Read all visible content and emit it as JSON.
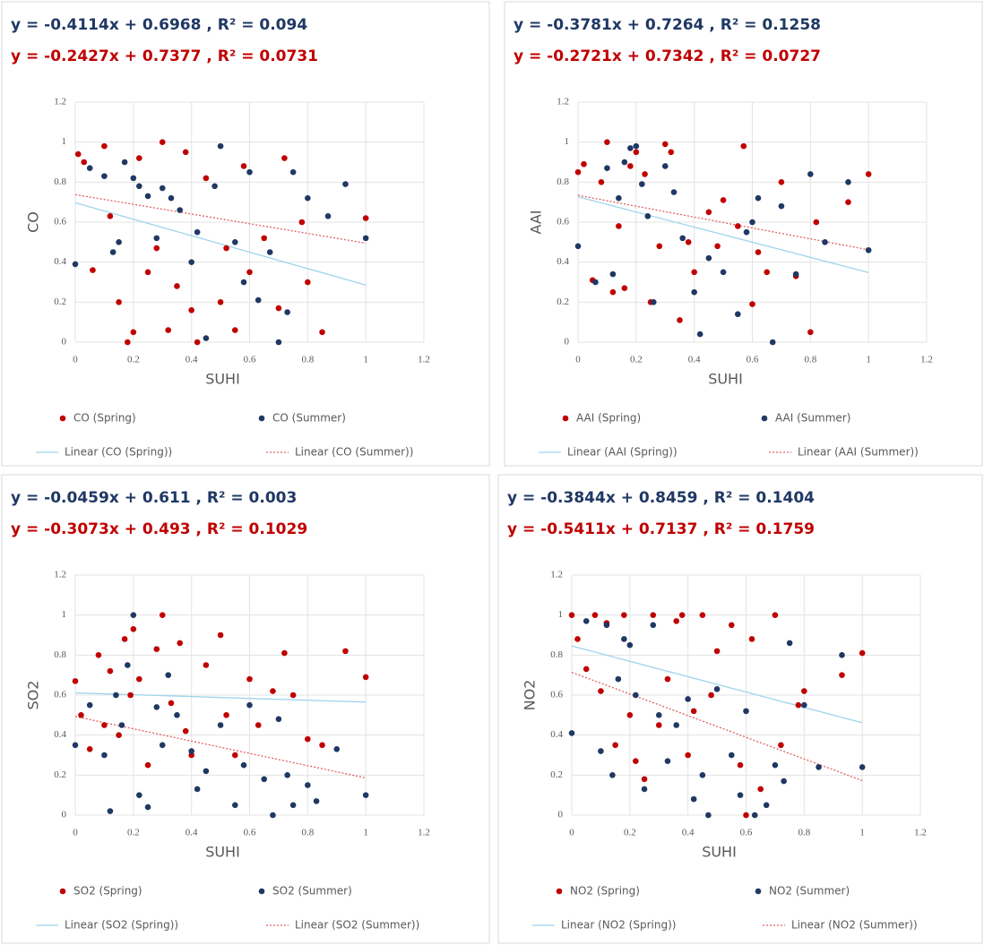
{
  "chart_data": [
    {
      "type": "scatter",
      "xlabel": "SUHI",
      "ylabel": "CO",
      "xlim": [
        0,
        1.2
      ],
      "xticks": [
        0,
        0.2,
        0.4,
        0.6,
        0.8,
        1,
        1.2
      ],
      "ylim": [
        0,
        1.2
      ],
      "yticks": [
        0,
        0.2,
        0.4,
        0.6,
        0.8,
        1,
        1.2
      ],
      "grid": true,
      "series": [
        {
          "name": "CO (Spring)",
          "color": "#c00000",
          "x": [
            0.01,
            0.03,
            0.06,
            0.1,
            0.12,
            0.15,
            0.18,
            0.2,
            0.22,
            0.25,
            0.28,
            0.3,
            0.32,
            0.35,
            0.38,
            0.4,
            0.42,
            0.45,
            0.5,
            0.52,
            0.55,
            0.58,
            0.6,
            0.65,
            0.7,
            0.72,
            0.78,
            0.8,
            0.85,
            1.0
          ],
          "values": [
            0.94,
            0.9,
            0.36,
            0.98,
            0.63,
            0.2,
            0.0,
            0.05,
            0.92,
            0.35,
            0.47,
            1.0,
            0.06,
            0.28,
            0.95,
            0.16,
            0.0,
            0.82,
            0.2,
            0.47,
            0.06,
            0.88,
            0.35,
            0.52,
            0.17,
            0.92,
            0.6,
            0.3,
            0.05,
            0.62
          ]
        },
        {
          "name": "CO (Summer)",
          "color": "#1f3864",
          "x": [
            0.0,
            0.05,
            0.1,
            0.13,
            0.15,
            0.17,
            0.2,
            0.22,
            0.25,
            0.28,
            0.3,
            0.33,
            0.36,
            0.4,
            0.42,
            0.45,
            0.48,
            0.5,
            0.55,
            0.58,
            0.6,
            0.63,
            0.67,
            0.7,
            0.73,
            0.75,
            0.8,
            0.87,
            0.93,
            1.0
          ],
          "values": [
            0.39,
            0.87,
            0.83,
            0.45,
            0.5,
            0.9,
            0.82,
            0.78,
            0.73,
            0.52,
            0.77,
            0.72,
            0.66,
            0.4,
            0.55,
            0.02,
            0.78,
            0.98,
            0.5,
            0.3,
            0.85,
            0.21,
            0.45,
            0.0,
            0.15,
            0.85,
            0.72,
            0.63,
            0.79,
            0.52
          ]
        }
      ],
      "trendlines": [
        {
          "name": "Linear (CO (Spring))",
          "color": "#9fd4ec",
          "dashed": false,
          "slope": -0.4114,
          "intercept": 0.6968,
          "label": "y = -0.4114x + 0.6968 ,  R² = 0.094",
          "label_color": "#1f3864"
        },
        {
          "name": "Linear (CO (Summer))",
          "color": "#e06060",
          "dashed": true,
          "slope": -0.2427,
          "intercept": 0.7377,
          "label": "y = -0.2427x + 0.7377 ,  R² = 0.0731",
          "label_color": "#c00000"
        }
      ]
    },
    {
      "type": "scatter",
      "xlabel": "SUHI",
      "ylabel": "AAI",
      "xlim": [
        0,
        1.2
      ],
      "xticks": [
        0,
        0.2,
        0.4,
        0.6,
        0.8,
        1,
        1.2
      ],
      "ylim": [
        0,
        1.2
      ],
      "yticks": [
        0,
        0.2,
        0.4,
        0.6,
        0.8,
        1,
        1.2
      ],
      "grid": true,
      "series": [
        {
          "name": "AAI (Spring)",
          "color": "#c00000",
          "x": [
            0.0,
            0.02,
            0.05,
            0.08,
            0.1,
            0.12,
            0.14,
            0.16,
            0.18,
            0.2,
            0.23,
            0.25,
            0.28,
            0.3,
            0.32,
            0.35,
            0.38,
            0.4,
            0.45,
            0.48,
            0.5,
            0.55,
            0.57,
            0.6,
            0.62,
            0.65,
            0.7,
            0.75,
            0.8,
            0.82,
            0.93,
            1.0
          ],
          "values": [
            0.85,
            0.89,
            0.31,
            0.8,
            1.0,
            0.25,
            0.58,
            0.27,
            0.88,
            0.95,
            0.84,
            0.2,
            0.48,
            0.99,
            0.95,
            0.11,
            0.5,
            0.35,
            0.65,
            0.48,
            0.71,
            0.58,
            0.98,
            0.19,
            0.45,
            0.35,
            0.8,
            0.33,
            0.05,
            0.6,
            0.7,
            0.84
          ]
        },
        {
          "name": "AAI (Summer)",
          "color": "#1f3864",
          "x": [
            0.0,
            0.06,
            0.1,
            0.12,
            0.14,
            0.16,
            0.18,
            0.2,
            0.22,
            0.24,
            0.26,
            0.3,
            0.33,
            0.36,
            0.4,
            0.42,
            0.45,
            0.5,
            0.55,
            0.58,
            0.6,
            0.62,
            0.67,
            0.7,
            0.75,
            0.8,
            0.85,
            0.93,
            1.0
          ],
          "values": [
            0.48,
            0.3,
            0.87,
            0.34,
            0.72,
            0.9,
            0.97,
            0.98,
            0.79,
            0.63,
            0.2,
            0.88,
            0.75,
            0.52,
            0.25,
            0.04,
            0.42,
            0.35,
            0.14,
            0.55,
            0.6,
            0.72,
            0.0,
            0.68,
            0.34,
            0.84,
            0.5,
            0.8,
            0.46
          ]
        }
      ],
      "trendlines": [
        {
          "name": "Linear (AAI (Spring))",
          "color": "#9fd4ec",
          "dashed": false,
          "slope": -0.3781,
          "intercept": 0.7264,
          "label": "y = -0.3781x + 0.7264 ,  R² = 0.1258",
          "label_color": "#1f3864"
        },
        {
          "name": "Linear (AAI (Summer))",
          "color": "#e06060",
          "dashed": true,
          "slope": -0.2721,
          "intercept": 0.7342,
          "label": "y = -0.2721x + 0.7342 ,  R² = 0.0727",
          "label_color": "#c00000"
        }
      ]
    },
    {
      "type": "scatter",
      "xlabel": "SUHI",
      "ylabel": "SO2",
      "xlim": [
        0,
        1.2
      ],
      "xticks": [
        0,
        0.2,
        0.4,
        0.6,
        0.8,
        1,
        1.2
      ],
      "ylim": [
        0,
        1.2
      ],
      "yticks": [
        0,
        0.2,
        0.4,
        0.6,
        0.8,
        1,
        1.2
      ],
      "grid": true,
      "series": [
        {
          "name": "SO2 (Spring)",
          "color": "#c00000",
          "x": [
            0.0,
            0.02,
            0.05,
            0.08,
            0.1,
            0.12,
            0.15,
            0.17,
            0.19,
            0.2,
            0.22,
            0.25,
            0.28,
            0.3,
            0.33,
            0.36,
            0.38,
            0.4,
            0.45,
            0.5,
            0.52,
            0.55,
            0.6,
            0.63,
            0.68,
            0.72,
            0.75,
            0.8,
            0.85,
            0.93,
            1.0
          ],
          "values": [
            0.67,
            0.5,
            0.33,
            0.8,
            0.45,
            0.72,
            0.4,
            0.88,
            0.6,
            0.93,
            0.68,
            0.25,
            0.83,
            1.0,
            0.56,
            0.86,
            0.42,
            0.3,
            0.75,
            0.9,
            0.5,
            0.3,
            0.68,
            0.45,
            0.62,
            0.81,
            0.6,
            0.38,
            0.35,
            0.82,
            0.69
          ]
        },
        {
          "name": "SO2 (Summer)",
          "color": "#1f3864",
          "x": [
            0.0,
            0.05,
            0.1,
            0.12,
            0.14,
            0.16,
            0.18,
            0.2,
            0.22,
            0.25,
            0.28,
            0.3,
            0.32,
            0.35,
            0.4,
            0.42,
            0.45,
            0.5,
            0.55,
            0.58,
            0.6,
            0.65,
            0.68,
            0.7,
            0.73,
            0.75,
            0.8,
            0.83,
            0.9,
            1.0
          ],
          "values": [
            0.35,
            0.55,
            0.3,
            0.02,
            0.6,
            0.45,
            0.75,
            1.0,
            0.1,
            0.04,
            0.54,
            0.35,
            0.7,
            0.5,
            0.32,
            0.13,
            0.22,
            0.45,
            0.05,
            0.25,
            0.55,
            0.18,
            0.0,
            0.48,
            0.2,
            0.05,
            0.15,
            0.07,
            0.33,
            0.1
          ]
        }
      ],
      "trendlines": [
        {
          "name": "Linear (SO2 (Spring))",
          "color": "#9fd4ec",
          "dashed": false,
          "slope": -0.0459,
          "intercept": 0.611,
          "label": "y = -0.0459x + 0.611 ,  R² = 0.003",
          "label_color": "#1f3864"
        },
        {
          "name": "Linear (SO2 (Summer))",
          "color": "#e06060",
          "dashed": true,
          "slope": -0.3073,
          "intercept": 0.493,
          "label": "y = -0.3073x + 0.493 ,  R² = 0.1029",
          "label_color": "#c00000"
        }
      ]
    },
    {
      "type": "scatter",
      "xlabel": "SUHI",
      "ylabel": "NO2",
      "xlim": [
        0,
        1.2
      ],
      "xticks": [
        0,
        0.2,
        0.4,
        0.6,
        0.8,
        1,
        1.2
      ],
      "ylim": [
        0,
        1.2
      ],
      "yticks": [
        0,
        0.2,
        0.4,
        0.6,
        0.8,
        1,
        1.2
      ],
      "grid": true,
      "series": [
        {
          "name": "NO2 (Spring)",
          "color": "#c00000",
          "x": [
            0.0,
            0.02,
            0.05,
            0.08,
            0.1,
            0.12,
            0.15,
            0.18,
            0.2,
            0.22,
            0.25,
            0.28,
            0.3,
            0.33,
            0.36,
            0.38,
            0.4,
            0.42,
            0.45,
            0.48,
            0.5,
            0.55,
            0.58,
            0.6,
            0.62,
            0.65,
            0.7,
            0.72,
            0.78,
            0.8,
            0.93,
            1.0
          ],
          "values": [
            1.0,
            0.88,
            0.73,
            1.0,
            0.62,
            0.96,
            0.35,
            1.0,
            0.5,
            0.27,
            0.18,
            1.0,
            0.45,
            0.68,
            0.97,
            1.0,
            0.3,
            0.52,
            1.0,
            0.6,
            0.82,
            0.95,
            0.25,
            0.0,
            0.88,
            0.13,
            1.0,
            0.35,
            0.55,
            0.62,
            0.7,
            0.81
          ]
        },
        {
          "name": "NO2 (Summer)",
          "color": "#1f3864",
          "x": [
            0.0,
            0.05,
            0.1,
            0.12,
            0.14,
            0.16,
            0.18,
            0.2,
            0.22,
            0.25,
            0.28,
            0.3,
            0.33,
            0.36,
            0.4,
            0.42,
            0.45,
            0.47,
            0.5,
            0.55,
            0.58,
            0.6,
            0.63,
            0.67,
            0.7,
            0.73,
            0.75,
            0.8,
            0.85,
            0.93,
            1.0
          ],
          "values": [
            0.41,
            0.97,
            0.32,
            0.95,
            0.2,
            0.68,
            0.88,
            0.85,
            0.6,
            0.13,
            0.95,
            0.5,
            0.27,
            0.45,
            0.58,
            0.08,
            0.2,
            0.0,
            0.63,
            0.3,
            0.1,
            0.52,
            0.0,
            0.05,
            0.25,
            0.17,
            0.86,
            0.55,
            0.24,
            0.8,
            0.24
          ]
        }
      ],
      "trendlines": [
        {
          "name": "Linear (NO2 (Spring))",
          "color": "#9fd4ec",
          "dashed": false,
          "slope": -0.3844,
          "intercept": 0.8459,
          "label": "y = -0.3844x + 0.8459 ,  R² = 0.1404",
          "label_color": "#1f3864"
        },
        {
          "name": "Linear (NO2 (Summer))",
          "color": "#e06060",
          "dashed": true,
          "slope": -0.5411,
          "intercept": 0.7137,
          "label": "y = -0.5411x + 0.7137 ,  R² = 0.1759",
          "label_color": "#c00000"
        }
      ]
    }
  ]
}
